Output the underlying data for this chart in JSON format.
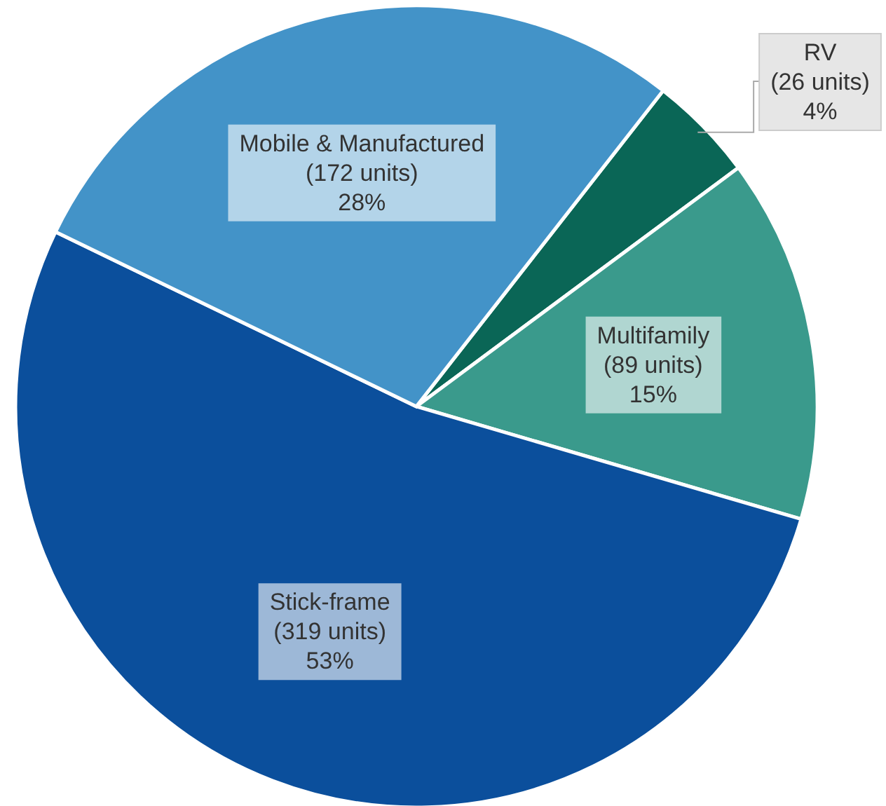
{
  "chart_data": {
    "type": "pie",
    "categories": [
      "RV",
      "Multifamily",
      "Stick-frame",
      "Mobile & Manufactured"
    ],
    "values": [
      26,
      89,
      319,
      172
    ],
    "colors": [
      "#0a6656",
      "#3a9a8c",
      "#0b4f9c",
      "#4393c8"
    ],
    "value_labels": [
      "(26 units)\n4%",
      "(89 units)\n15%",
      "(319 units)\n53%",
      "(172 units)\n28%"
    ]
  }
}
